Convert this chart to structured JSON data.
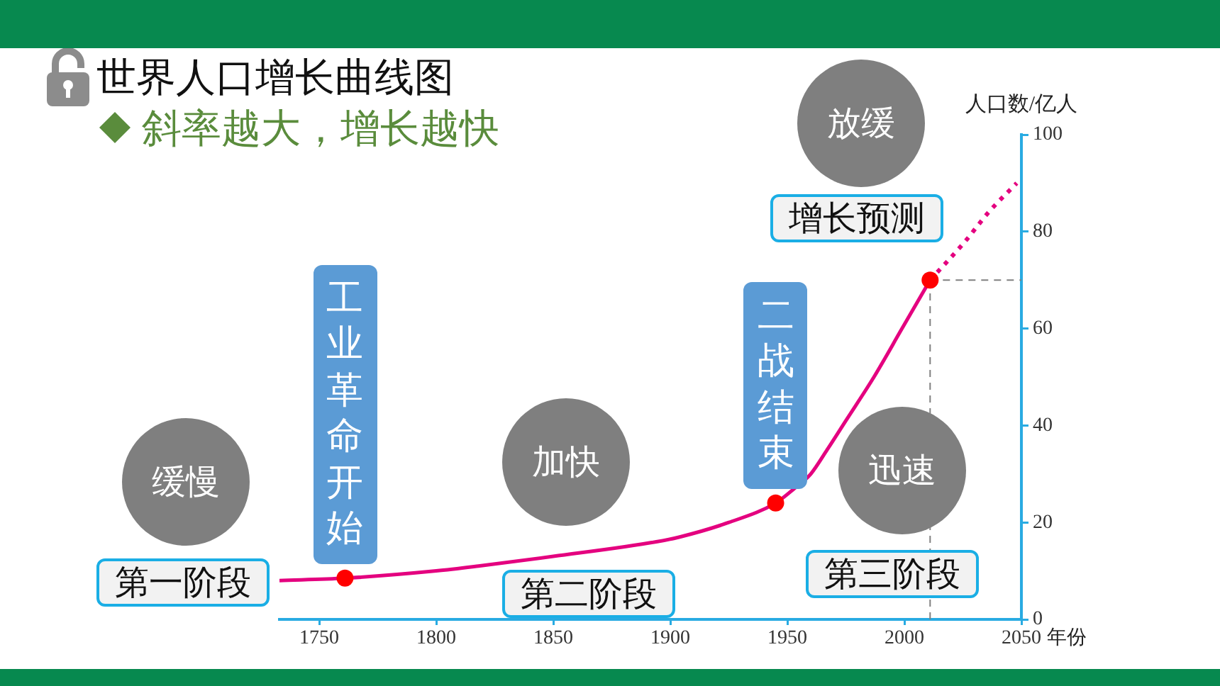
{
  "chart_data": {
    "type": "line",
    "title": "世界人口增长曲线图",
    "subtitle": "斜率越大，增长越快",
    "xlabel": "年份",
    "ylabel": "人口数/亿人",
    "xlim": [
      1733,
      2050
    ],
    "xticks": [
      1750,
      1800,
      1850,
      1900,
      1950,
      2000,
      2050
    ],
    "ylim": [
      0,
      100
    ],
    "yticks": [
      0,
      20,
      40,
      60,
      80,
      100
    ],
    "series": [
      {
        "type": "line",
        "color": "#e4007f",
        "line_style": "solid",
        "x": [
          1733,
          1761,
          1800,
          1818,
          1850,
          1894,
          1904,
          1925,
          1945,
          1953,
          1960,
          1967,
          1975,
          1987,
          1999,
          2011
        ],
        "values": [
          8,
          8.5,
          10,
          11,
          13,
          16,
          17,
          20,
          24,
          27,
          30,
          35,
          41,
          50,
          60,
          70
        ]
      },
      {
        "type": "line",
        "color": "#e4007f",
        "line_style": "dotted",
        "x": [
          2011,
          2026,
          2036,
          2048
        ],
        "values": [
          70,
          78,
          84,
          90
        ]
      },
      {
        "type": "scatter",
        "color": "#ff0000",
        "marker": "circle",
        "x": [
          1761,
          1945,
          2011
        ],
        "values": [
          8.5,
          24,
          70
        ]
      }
    ],
    "ref_lines": [
      {
        "axis": "x",
        "value": 2011,
        "color": "#808080",
        "line_style": "dashed"
      },
      {
        "axis": "y",
        "value": 70,
        "color": "#808080",
        "line_style": "dashed"
      }
    ],
    "annotations": [
      "缓慢",
      "第一阶段",
      {
        "text": "工业革命开始",
        "x": 1761,
        "y": 8.5
      },
      "加快",
      "第二阶段",
      {
        "text": "二战结束",
        "x": 1945,
        "y": 24
      },
      "迅速",
      "第三阶段",
      "放缓",
      "增长预测"
    ]
  }
}
